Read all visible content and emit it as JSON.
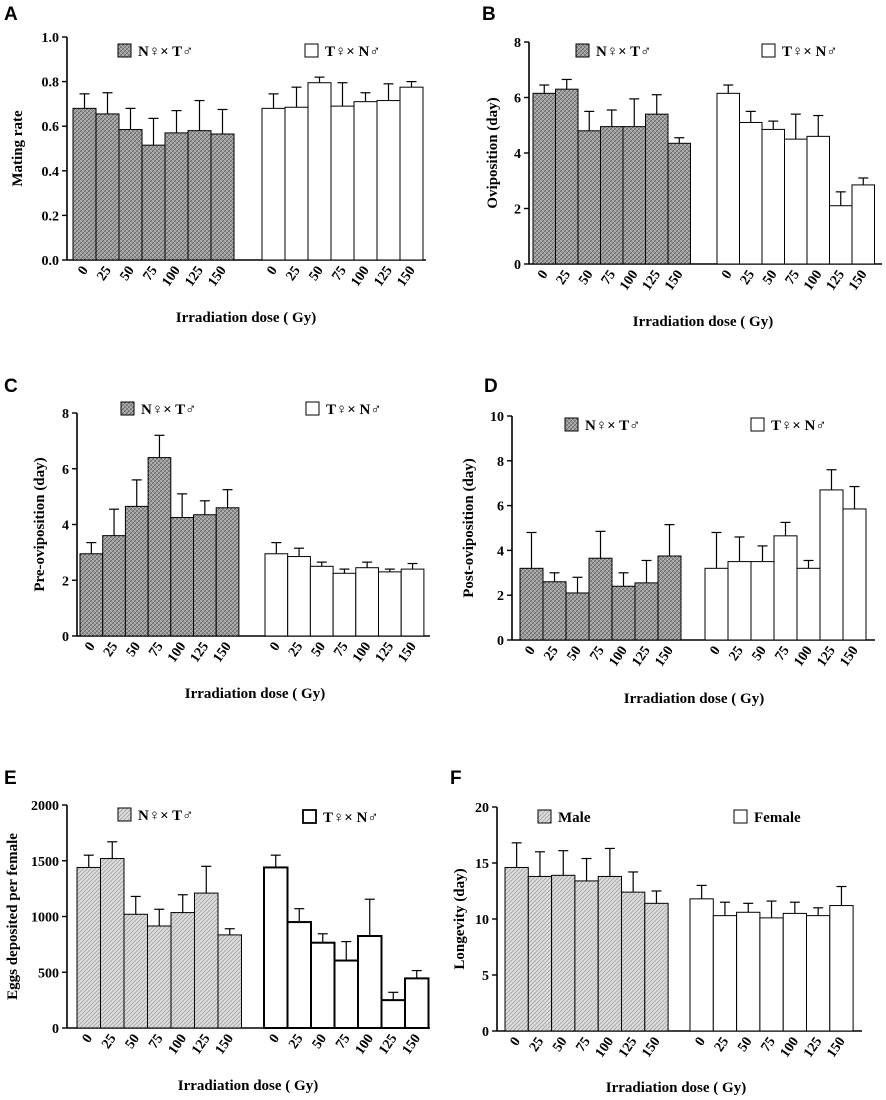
{
  "chart_data": [
    {
      "panel": "A",
      "type": "bar",
      "ylabel": "Mating rate",
      "xlabel": "Irradiation dose ( Gy)",
      "ylim": [
        0,
        1.0
      ],
      "yticks": [
        "0.0",
        "0.2",
        "0.4",
        "0.6",
        "0.8",
        "1.0"
      ],
      "categories": [
        "0",
        "25",
        "50",
        "75",
        "100",
        "125",
        "150"
      ],
      "series": [
        {
          "name": "N♀× T♂",
          "style": "hatched",
          "values": [
            0.68,
            0.655,
            0.585,
            0.515,
            0.57,
            0.58,
            0.565
          ],
          "errors": [
            0.065,
            0.095,
            0.095,
            0.12,
            0.1,
            0.135,
            0.11
          ]
        },
        {
          "name": "T♀× N♂",
          "style": "open",
          "values": [
            0.68,
            0.685,
            0.795,
            0.69,
            0.71,
            0.715,
            0.775
          ],
          "errors": [
            0.065,
            0.09,
            0.025,
            0.105,
            0.04,
            0.075,
            0.025
          ]
        }
      ]
    },
    {
      "panel": "B",
      "type": "bar",
      "ylabel": "Oviposition (day)",
      "xlabel": "Irradiation dose ( Gy)",
      "ylim": [
        0,
        8
      ],
      "yticks": [
        "0",
        "2",
        "4",
        "6",
        "8"
      ],
      "categories": [
        "0",
        "25",
        "50",
        "75",
        "100",
        "125",
        "150"
      ],
      "series": [
        {
          "name": "N♀× T♂",
          "style": "hatched",
          "values": [
            6.15,
            6.3,
            4.8,
            4.95,
            4.95,
            5.4,
            4.35
          ],
          "errors": [
            0.3,
            0.35,
            0.7,
            0.6,
            1.0,
            0.7,
            0.2
          ]
        },
        {
          "name": "T♀× N♂",
          "style": "open",
          "values": [
            6.15,
            5.1,
            4.85,
            4.5,
            4.6,
            2.1,
            2.85
          ],
          "errors": [
            0.3,
            0.4,
            0.3,
            0.9,
            0.75,
            0.5,
            0.25
          ]
        }
      ]
    },
    {
      "panel": "C",
      "type": "bar",
      "ylabel": "Pre-oviposition (day)",
      "xlabel": "Irradiation dose ( Gy)",
      "ylim": [
        0,
        8
      ],
      "yticks": [
        "0",
        "2",
        "4",
        "6",
        "8"
      ],
      "categories": [
        "0",
        "25",
        "50",
        "75",
        "100",
        "125",
        "150"
      ],
      "series": [
        {
          "name": "N♀× T♂",
          "style": "hatched",
          "values": [
            2.95,
            3.6,
            4.65,
            6.4,
            4.25,
            4.35,
            4.6
          ],
          "errors": [
            0.4,
            0.95,
            0.95,
            0.8,
            0.85,
            0.5,
            0.65
          ]
        },
        {
          "name": "T♀× N♂",
          "style": "open",
          "values": [
            2.95,
            2.85,
            2.5,
            2.25,
            2.45,
            2.3,
            2.4
          ],
          "errors": [
            0.4,
            0.3,
            0.15,
            0.15,
            0.2,
            0.1,
            0.2
          ]
        }
      ]
    },
    {
      "panel": "D",
      "type": "bar",
      "ylabel": "Post-oviposition (day)",
      "xlabel": "Irradiation dose ( Gy)",
      "ylim": [
        0,
        10
      ],
      "yticks": [
        "0",
        "2",
        "4",
        "6",
        "8",
        "10"
      ],
      "categories": [
        "0",
        "25",
        "50",
        "75",
        "100",
        "125",
        "150"
      ],
      "series": [
        {
          "name": "N♀× T♂",
          "style": "hatched",
          "values": [
            3.2,
            2.6,
            2.1,
            3.65,
            2.4,
            2.55,
            3.75
          ],
          "errors": [
            1.6,
            0.4,
            0.7,
            1.2,
            0.6,
            1.0,
            1.4
          ]
        },
        {
          "name": "T♀× N♂",
          "style": "open",
          "values": [
            3.2,
            3.5,
            3.5,
            4.65,
            3.2,
            6.7,
            5.85
          ],
          "errors": [
            1.6,
            1.1,
            0.7,
            0.6,
            0.35,
            0.9,
            1.0
          ]
        }
      ]
    },
    {
      "panel": "E",
      "type": "bar",
      "ylabel": "Eggs deposited per female",
      "xlabel": "Irradiation dose ( Gy)",
      "ylim": [
        0,
        2000
      ],
      "yticks": [
        "0",
        "500",
        "1000",
        "1500",
        "2000"
      ],
      "categories": [
        "0",
        "25",
        "50",
        "75",
        "100",
        "125",
        "150"
      ],
      "series": [
        {
          "name": "N♀× T♂",
          "style": "light",
          "values": [
            1440,
            1520,
            1020,
            915,
            1035,
            1210,
            835
          ],
          "errors": [
            110,
            150,
            160,
            150,
            160,
            240,
            55
          ]
        },
        {
          "name": "T♀× N♂",
          "style": "open-thick",
          "values": [
            1440,
            950,
            765,
            605,
            825,
            250,
            445
          ],
          "errors": [
            110,
            120,
            80,
            170,
            330,
            70,
            70
          ]
        }
      ]
    },
    {
      "panel": "F",
      "type": "bar",
      "ylabel": "Longevity (day)",
      "xlabel": "Irradiation dose ( Gy)",
      "ylim": [
        0,
        20
      ],
      "yticks": [
        "0",
        "5",
        "10",
        "15",
        "20"
      ],
      "categories": [
        "0",
        "25",
        "50",
        "75",
        "100",
        "125",
        "150"
      ],
      "series": [
        {
          "name": "Male",
          "style": "light",
          "values": [
            14.6,
            13.8,
            13.9,
            13.4,
            13.8,
            12.4,
            11.4
          ],
          "errors": [
            2.2,
            2.2,
            2.2,
            2.0,
            2.5,
            1.8,
            1.1
          ]
        },
        {
          "name": "Female",
          "style": "open",
          "values": [
            11.8,
            10.3,
            10.6,
            10.1,
            10.5,
            10.3,
            11.2
          ],
          "errors": [
            1.2,
            1.2,
            0.8,
            1.5,
            1.0,
            0.7,
            1.7
          ]
        }
      ]
    }
  ]
}
